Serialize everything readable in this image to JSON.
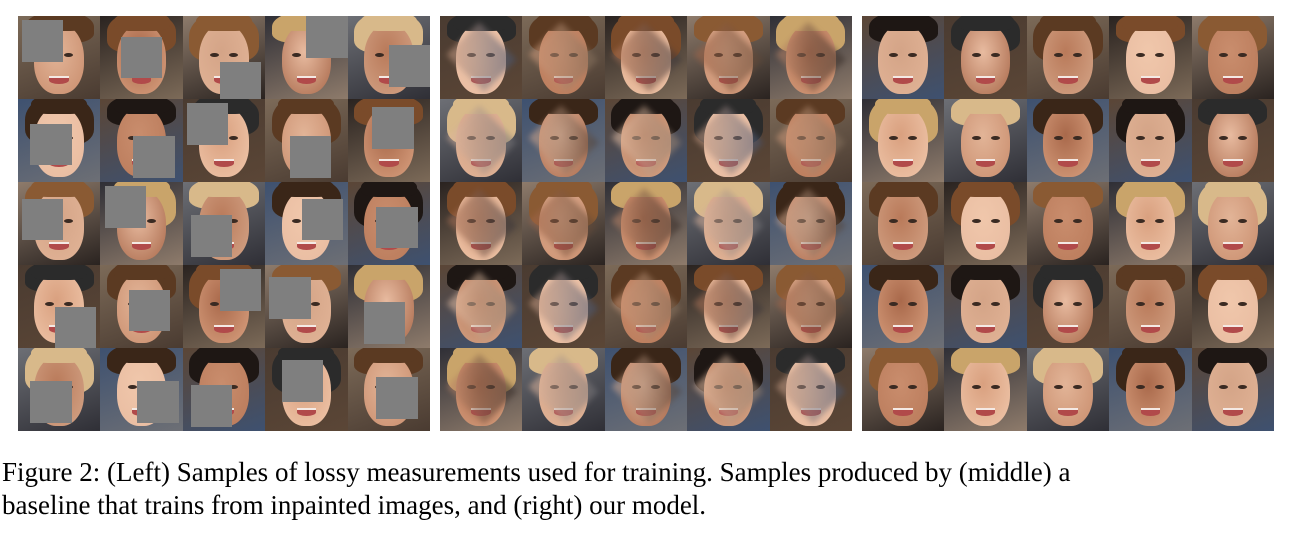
{
  "figure": {
    "panels": [
      {
        "id": "left",
        "masked": true
      },
      {
        "id": "middle",
        "masked": false,
        "blended": true
      },
      {
        "id": "right",
        "masked": false,
        "blended": false
      }
    ],
    "colors": {
      "mask": "#7f7f7f",
      "skin": [
        "#e2b497",
        "#d9a07f",
        "#c98d6d",
        "#f0c7ab",
        "#b97a5a",
        "#e8bba0",
        "#d4a487",
        "#a9694b"
      ],
      "hair": [
        "#3a2618",
        "#5b3a22",
        "#c9a46a",
        "#1e1714",
        "#7a4b2a",
        "#d8b98a",
        "#2b2b2b",
        "#8a5a33"
      ],
      "bg": [
        "#5b4636",
        "#2f2f36",
        "#7c6a58",
        "#3e5170",
        "#8e7b6b",
        "#4a3b31",
        "#6d6f75",
        "#2a2320"
      ]
    },
    "masks": [
      [
        0.05,
        0.05
      ],
      [
        0.25,
        0.25
      ],
      [
        0.45,
        0.55
      ],
      [
        0.5,
        0.0
      ],
      [
        0.5,
        0.35
      ],
      [
        0.15,
        0.3
      ],
      [
        0.4,
        0.45
      ],
      [
        0.05,
        0.05
      ],
      [
        0.3,
        0.45
      ],
      [
        0.3,
        0.1
      ],
      [
        0.05,
        0.2
      ],
      [
        0.05,
        0.05
      ],
      [
        0.1,
        0.4
      ],
      [
        0.45,
        0.2
      ],
      [
        0.35,
        0.3
      ],
      [
        0.45,
        0.5
      ],
      [
        0.35,
        0.3
      ],
      [
        0.45,
        0.05
      ],
      [
        0.05,
        0.15
      ],
      [
        0.2,
        0.45
      ],
      [
        0.15,
        0.4
      ],
      [
        0.45,
        0.4
      ],
      [
        0.1,
        0.45
      ],
      [
        0.2,
        0.15
      ],
      [
        0.35,
        0.35
      ]
    ]
  },
  "caption": {
    "text": "Figure 2: (Left) Samples of lossy measurements used for training. Samples produced by (middle) a\nbaseline that trains from inpainted images, and (right) our model."
  }
}
